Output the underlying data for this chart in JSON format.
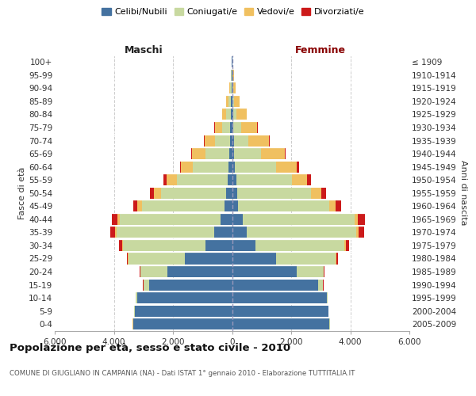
{
  "age_groups": [
    "0-4",
    "5-9",
    "10-14",
    "15-19",
    "20-24",
    "25-29",
    "30-34",
    "35-39",
    "40-44",
    "45-49",
    "50-54",
    "55-59",
    "60-64",
    "65-69",
    "70-74",
    "75-79",
    "80-84",
    "85-89",
    "90-94",
    "95-99",
    "100+"
  ],
  "birth_years": [
    "2005-2009",
    "2000-2004",
    "1995-1999",
    "1990-1994",
    "1985-1989",
    "1980-1984",
    "1975-1979",
    "1970-1974",
    "1965-1969",
    "1960-1964",
    "1955-1959",
    "1950-1954",
    "1945-1949",
    "1940-1944",
    "1935-1939",
    "1930-1934",
    "1925-1929",
    "1920-1924",
    "1915-1919",
    "1910-1914",
    "≤ 1909"
  ],
  "male_celibe": [
    3350,
    3300,
    3200,
    2800,
    2200,
    1600,
    900,
    600,
    400,
    250,
    200,
    160,
    120,
    100,
    80,
    60,
    40,
    30,
    20,
    15,
    10
  ],
  "male_coniugato": [
    5,
    10,
    50,
    200,
    900,
    1900,
    2800,
    3300,
    3400,
    2800,
    2200,
    1700,
    1200,
    800,
    500,
    280,
    150,
    80,
    40,
    20,
    10
  ],
  "male_vedovo": [
    1,
    1,
    2,
    5,
    10,
    20,
    30,
    60,
    80,
    150,
    250,
    350,
    400,
    450,
    350,
    250,
    150,
    80,
    30,
    15,
    5
  ],
  "male_divorziato": [
    1,
    2,
    5,
    10,
    20,
    50,
    100,
    150,
    180,
    150,
    120,
    100,
    50,
    20,
    15,
    10,
    5,
    5,
    3,
    2,
    1
  ],
  "female_celibe": [
    3300,
    3250,
    3200,
    2900,
    2200,
    1500,
    800,
    500,
    350,
    200,
    180,
    140,
    100,
    80,
    60,
    50,
    30,
    20,
    15,
    10,
    5
  ],
  "female_coniugata": [
    3,
    8,
    40,
    180,
    900,
    2000,
    3000,
    3700,
    3800,
    3100,
    2500,
    1900,
    1400,
    900,
    500,
    250,
    120,
    60,
    30,
    15,
    8
  ],
  "female_vedova": [
    1,
    1,
    2,
    5,
    10,
    25,
    40,
    70,
    100,
    200,
    350,
    500,
    700,
    800,
    700,
    550,
    350,
    180,
    70,
    30,
    10
  ],
  "female_divorziata": [
    1,
    1,
    3,
    8,
    20,
    60,
    130,
    200,
    250,
    200,
    150,
    120,
    60,
    25,
    18,
    12,
    8,
    5,
    3,
    2,
    1
  ],
  "color_celibe": "#4472a0",
  "color_coniugato": "#c8d9a0",
  "color_vedovo": "#f0c060",
  "color_divorziato": "#cc1a1a",
  "title": "Popolazione per età, sesso e stato civile - 2010",
  "subtitle": "COMUNE DI GIUGLIANO IN CAMPANIA (NA) - Dati ISTAT 1° gennaio 2010 - Elaborazione TUTTITALIA.IT",
  "label_maschi": "Maschi",
  "label_femmine": "Femmine",
  "ylabel_left": "Fasce di età",
  "ylabel_right": "Anni di nascita",
  "xlim": 6000,
  "xtick_labels": [
    "6.000",
    "4.000",
    "2.000",
    "0",
    "2.000",
    "4.000",
    "6.000"
  ],
  "bg_color": "#f5f5f0",
  "plot_bg": "#ffffff"
}
